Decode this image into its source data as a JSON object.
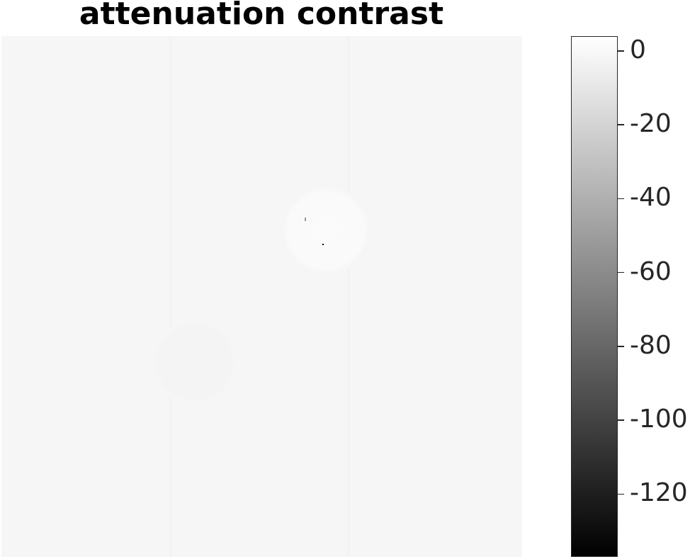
{
  "chart_data": {
    "type": "heatmap",
    "title": "attenuation contrast",
    "colormap": "gray",
    "background_color": "#f6f6f6",
    "colorbar": {
      "range": [
        -137,
        4
      ],
      "ticks": [
        0,
        -20,
        -40,
        -60,
        -80,
        -100,
        -120
      ],
      "tick_labels": [
        "0",
        "-20",
        "-40",
        "-60",
        "-80",
        "-100",
        "-120"
      ],
      "gradient": [
        "#000000",
        "#ffffff"
      ]
    }
  }
}
